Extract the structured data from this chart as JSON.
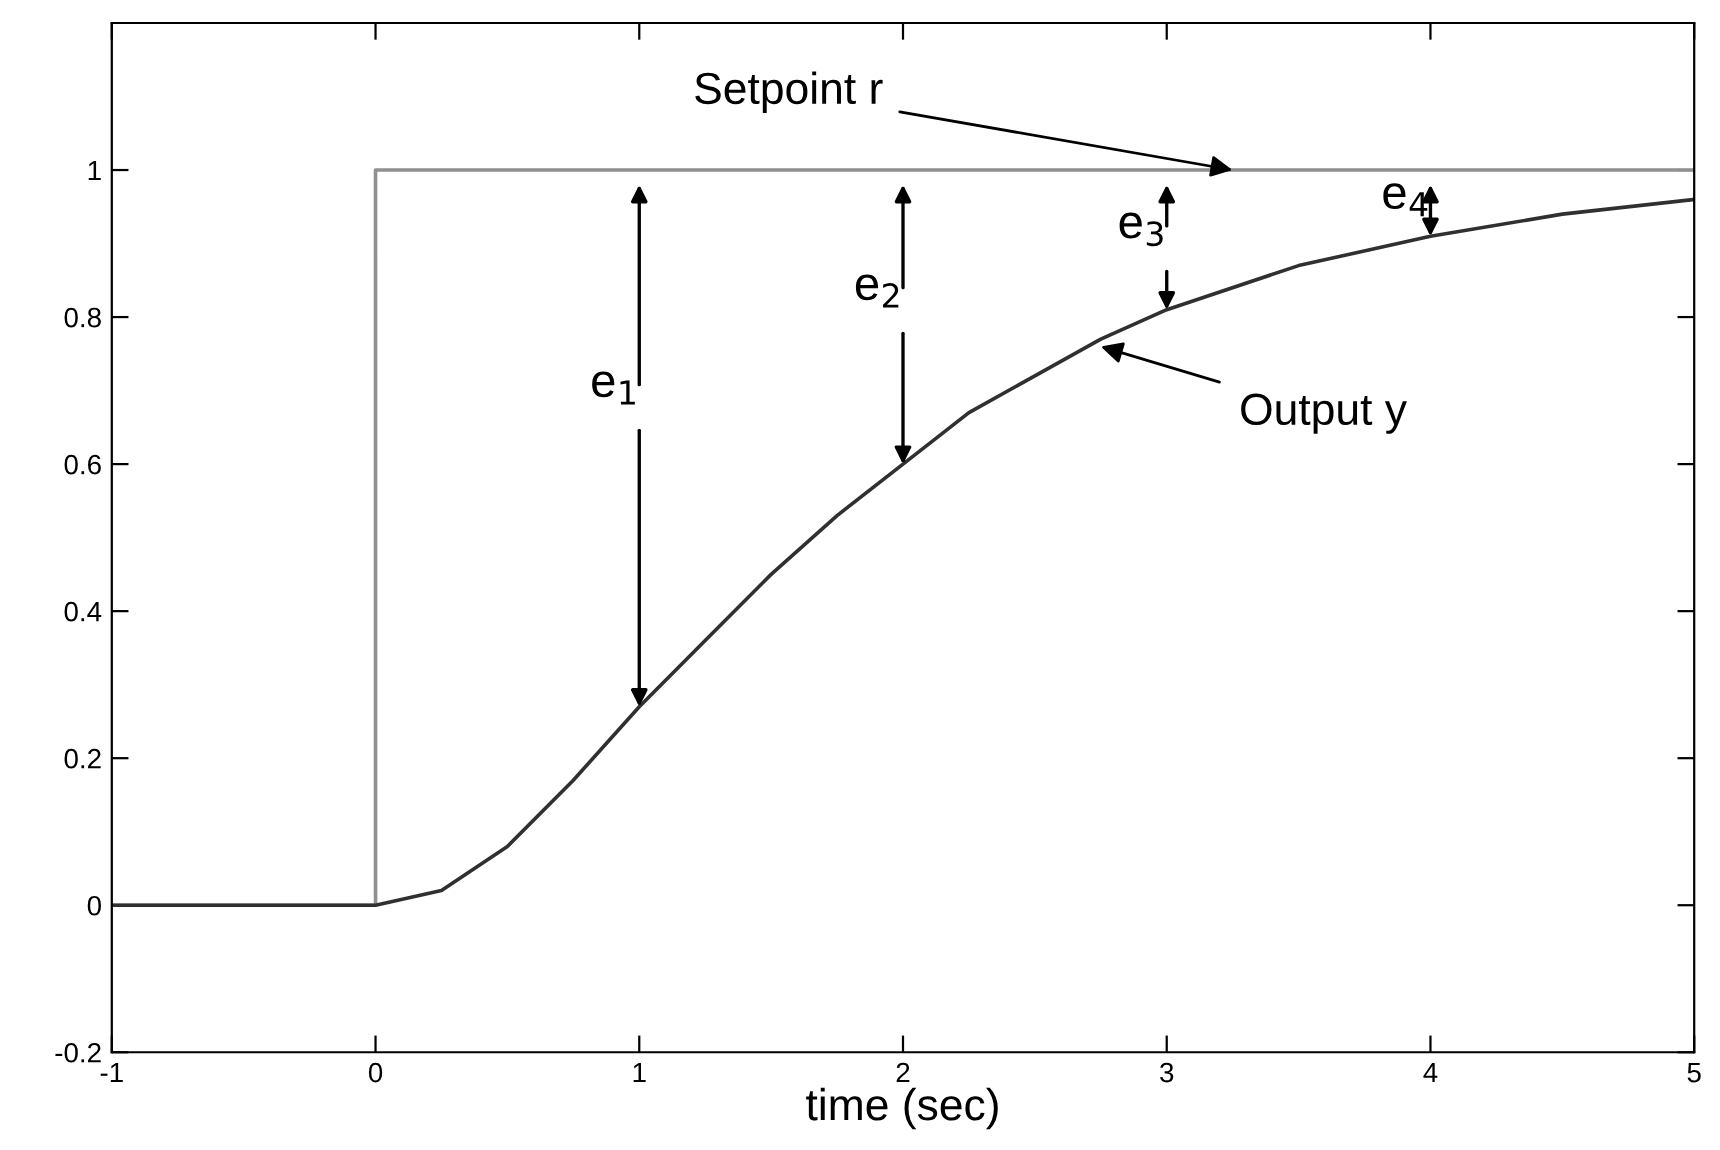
{
  "chart_data": {
    "type": "line",
    "xlabel": "time (sec)",
    "xlim": [
      -1,
      5
    ],
    "ylim": [
      -0.2,
      1.2
    ],
    "xticks": [
      -1,
      0,
      1,
      2,
      3,
      4,
      5
    ],
    "yticks": [
      -0.2,
      0,
      0.2,
      0.4,
      0.6,
      0.8,
      1
    ],
    "grid": false,
    "legend": false,
    "marker": "none",
    "line_style": "solid",
    "series": [
      {
        "color": "#909090",
        "x": [
          -1,
          0,
          0,
          5
        ],
        "values": [
          0,
          0,
          1,
          1
        ]
      },
      {
        "color": "#303030",
        "x": [
          -1,
          0,
          0.25,
          0.5,
          0.75,
          1,
          1.25,
          1.5,
          1.75,
          2,
          2.25,
          2.5,
          2.75,
          3,
          3.5,
          4,
          4.5,
          5
        ],
        "values": [
          0,
          0,
          0.02,
          0.08,
          0.17,
          0.27,
          0.36,
          0.45,
          0.53,
          0.6,
          0.67,
          0.72,
          0.77,
          0.81,
          0.87,
          0.91,
          0.94,
          0.96
        ]
      }
    ],
    "annotations": [
      {
        "text": "Setpoint r",
        "x": 3.25,
        "y": 1
      },
      {
        "text": "Output y",
        "x": 2.75,
        "y": 0.76
      },
      {
        "text": "e$_{1}$",
        "x": 1,
        "y": 0.27
      },
      {
        "text": "e$_{2}$",
        "x": 2,
        "y": 0.6
      },
      {
        "text": "e$_{3}$",
        "x": 3,
        "y": 0.81
      },
      {
        "text": "e$_{4}$",
        "x": 4,
        "y": 0.91
      }
    ]
  }
}
